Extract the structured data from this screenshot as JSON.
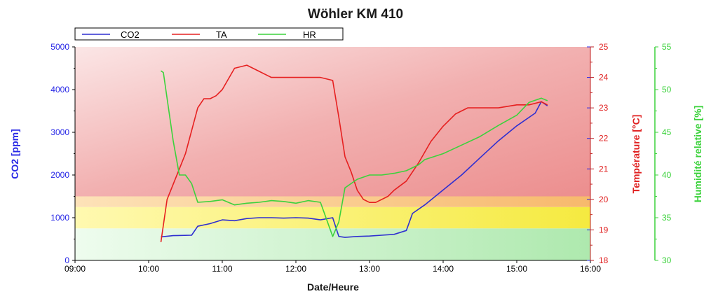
{
  "chart_data": {
    "type": "line",
    "title": "Wöhler KM 410",
    "xlabel": "Date/Heure",
    "x_ticks": [
      "09:00",
      "10:00",
      "11:00",
      "12:00",
      "13:00",
      "14:00",
      "15:00",
      "16:00"
    ],
    "xlim": [
      "09:00",
      "16:00"
    ],
    "legend_position": "top-left",
    "grid": false,
    "axes": {
      "left": {
        "label": "CO2 [ppm]",
        "color": "#2828e6",
        "lim": [
          0,
          5000
        ],
        "ticks": [
          "0",
          "1000",
          "2000",
          "3000",
          "4000",
          "5000"
        ]
      },
      "right1": {
        "label": "Température [°C]",
        "color": "#e02020",
        "lim": [
          18,
          25
        ],
        "ticks": [
          "18",
          "19",
          "20",
          "21",
          "22",
          "23",
          "24",
          "25"
        ]
      },
      "right2": {
        "label": "Humidité relative [%]",
        "color": "#3cd23c",
        "lim": [
          30,
          55
        ],
        "ticks": [
          "30",
          "35",
          "40",
          "45",
          "50",
          "55"
        ]
      }
    },
    "bands": [
      {
        "from": 0,
        "to": 750,
        "color": "#c9f2c9"
      },
      {
        "from": 750,
        "to": 1250,
        "color": "#fbf06a"
      },
      {
        "from": 1250,
        "to": 1500,
        "color": "#f9c882"
      },
      {
        "from": 1500,
        "to": 5000,
        "color": "#ef9a9a"
      }
    ],
    "series": [
      {
        "name": "CO2",
        "axis": "left",
        "color": "#2f2fd0",
        "x": [
          "10:10",
          "10:20",
          "10:35",
          "10:40",
          "10:50",
          "11:00",
          "11:10",
          "11:20",
          "11:30",
          "11:40",
          "11:50",
          "12:00",
          "12:10",
          "12:20",
          "12:30",
          "12:35",
          "12:40",
          "12:50",
          "13:00",
          "13:10",
          "13:20",
          "13:30",
          "13:35",
          "13:45",
          "14:00",
          "14:15",
          "14:30",
          "14:45",
          "15:00",
          "15:15",
          "15:20",
          "15:25"
        ],
        "values": [
          550,
          580,
          590,
          800,
          860,
          950,
          930,
          980,
          1000,
          1000,
          990,
          1000,
          990,
          950,
          1000,
          560,
          540,
          560,
          570,
          590,
          610,
          700,
          1100,
          1300,
          1650,
          2000,
          2400,
          2800,
          3150,
          3450,
          3720,
          3620
        ]
      },
      {
        "name": "TA",
        "axis": "right1",
        "color": "#e62020",
        "x": [
          "10:10",
          "10:15",
          "10:25",
          "10:30",
          "10:40",
          "10:45",
          "10:50",
          "10:55",
          "11:00",
          "11:10",
          "11:20",
          "11:25",
          "11:30",
          "11:40",
          "11:50",
          "12:00",
          "12:10",
          "12:20",
          "12:30",
          "12:35",
          "12:40",
          "12:45",
          "12:50",
          "12:55",
          "13:00",
          "13:05",
          "13:15",
          "13:20",
          "13:30",
          "13:40",
          "13:50",
          "14:00",
          "14:10",
          "14:20",
          "14:30",
          "14:45",
          "15:00",
          "15:10",
          "15:20",
          "15:25"
        ],
        "values": [
          18.6,
          20.0,
          21.0,
          21.5,
          23.0,
          23.3,
          23.3,
          23.4,
          23.6,
          24.3,
          24.4,
          24.3,
          24.2,
          24.0,
          24.0,
          24.0,
          24.0,
          24.0,
          23.9,
          22.7,
          21.4,
          20.9,
          20.3,
          20.0,
          19.9,
          19.9,
          20.1,
          20.3,
          20.6,
          21.2,
          21.9,
          22.4,
          22.8,
          23.0,
          23.0,
          23.0,
          23.1,
          23.1,
          23.2,
          23.1
        ]
      },
      {
        "name": "HR",
        "axis": "right2",
        "color": "#3cd23c",
        "x": [
          "10:10",
          "10:12",
          "10:20",
          "10:25",
          "10:30",
          "10:35",
          "10:40",
          "10:50",
          "11:00",
          "11:10",
          "11:20",
          "11:30",
          "11:40",
          "11:50",
          "12:00",
          "12:10",
          "12:20",
          "12:30",
          "12:35",
          "12:40",
          "12:50",
          "13:00",
          "13:10",
          "13:20",
          "13:30",
          "13:40",
          "13:45",
          "14:00",
          "14:15",
          "14:30",
          "14:45",
          "15:00",
          "15:10",
          "15:20",
          "15:25"
        ],
        "values": [
          52.2,
          52.0,
          44.0,
          40.0,
          40.0,
          39.0,
          36.8,
          36.9,
          37.1,
          36.5,
          36.7,
          36.8,
          37.0,
          36.9,
          36.7,
          37.0,
          36.8,
          32.8,
          34.5,
          38.5,
          39.5,
          40.0,
          40.0,
          40.2,
          40.5,
          41.2,
          41.8,
          42.5,
          43.5,
          44.5,
          45.8,
          47.0,
          48.5,
          49.0,
          48.7
        ]
      }
    ]
  }
}
